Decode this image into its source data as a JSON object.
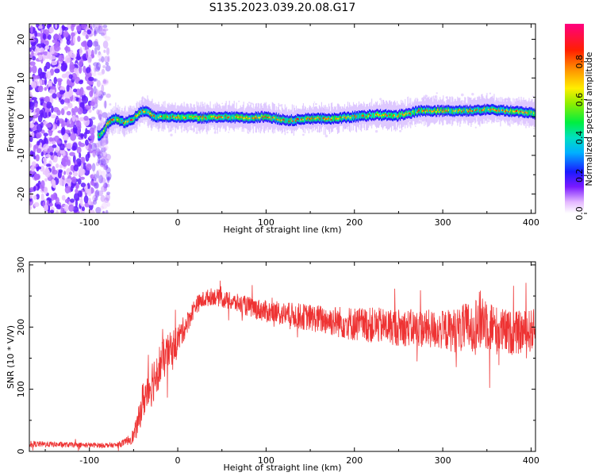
{
  "title": "S135.2023.039.20.08.G17",
  "chart_data": [
    {
      "type": "heatmap",
      "name": "spectrogram",
      "xlabel": "Height of straight line (km)",
      "ylabel": "Frequency (Hz)",
      "xlim": [
        -168,
        405
      ],
      "ylim": [
        -25,
        24
      ],
      "x_ticks": [
        -100,
        0,
        100,
        200,
        300,
        400
      ],
      "y_ticks": [
        -20,
        -10,
        0,
        10,
        20
      ],
      "noise_region_x": [
        -168,
        -90
      ],
      "ridge": {
        "x": [
          -90,
          -85,
          -80,
          -75,
          -70,
          -65,
          -60,
          -55,
          -50,
          -45,
          -40,
          -35,
          -30,
          -25,
          -20,
          -10,
          0,
          25,
          50,
          75,
          100,
          125,
          150,
          175,
          200,
          225,
          250,
          275,
          300,
          325,
          350,
          375,
          405
        ],
        "y": [
          -5,
          -4.5,
          -2,
          -1,
          -0.5,
          -1,
          -1.5,
          -1,
          -0.5,
          0.5,
          1.5,
          1.5,
          0.5,
          0,
          0,
          0,
          0,
          -0.3,
          0,
          -0.3,
          0,
          -1,
          -0.5,
          -0.5,
          0,
          0.5,
          0.3,
          1.5,
          1.5,
          1.5,
          1.8,
          1.5,
          0.8
        ]
      },
      "colorbar": {
        "label": "Normalized spectral amplitude",
        "range": [
          0.0,
          1.0
        ],
        "ticks": [
          0.0,
          0.2,
          0.4,
          0.6,
          0.8
        ],
        "tick_labels": [
          "0.0",
          "0.2",
          "0.4",
          "0.6",
          "0.8"
        ]
      }
    },
    {
      "type": "line",
      "name": "snr",
      "xlabel": "Height of straight line (km)",
      "ylabel": "SNR (10 * V/V)",
      "xlim": [
        -168,
        405
      ],
      "ylim": [
        0,
        305
      ],
      "x_ticks": [
        -100,
        0,
        100,
        200,
        300,
        400
      ],
      "y_ticks": [
        0,
        100,
        200,
        300
      ],
      "color": "#ee3333",
      "envelope": {
        "x": [
          -168,
          -100,
          -70,
          -60,
          -50,
          -45,
          -40,
          -30,
          -20,
          -10,
          0,
          10,
          20,
          30,
          40,
          50,
          75,
          100,
          150,
          200,
          250,
          300,
          320,
          340,
          345,
          360,
          380,
          405
        ],
        "mean": [
          12,
          10,
          10,
          14,
          25,
          45,
          80,
          110,
          140,
          160,
          180,
          205,
          235,
          245,
          250,
          245,
          235,
          225,
          215,
          205,
          200,
          195,
          195,
          205,
          215,
          195,
          190,
          195
        ],
        "spread": [
          5,
          4,
          4,
          6,
          12,
          20,
          30,
          40,
          35,
          30,
          25,
          18,
          14,
          14,
          14,
          14,
          16,
          18,
          22,
          28,
          30,
          32,
          38,
          50,
          50,
          40,
          35,
          35
        ]
      }
    }
  ]
}
